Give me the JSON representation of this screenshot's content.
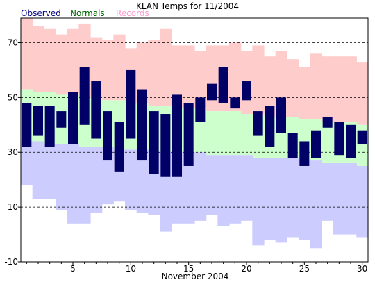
{
  "chart_data": {
    "type": "bar",
    "title": "KLAN Temps for 11/2004",
    "xlabel": "November 2004",
    "ylabel": "",
    "legend": [
      "Observed",
      "Normals",
      "Records"
    ],
    "legend_placement": "top-left",
    "colors": {
      "observed": "#000066",
      "observed_label": "#000080",
      "normals": "#ccffcc",
      "normals_label": "#006600",
      "records": "#ffcccc",
      "records_label": "#ff99cc",
      "extreme_low": "#ccccff"
    },
    "xlim": [
      0.5,
      30.5
    ],
    "ylim": [
      -10,
      79
    ],
    "x_ticks": [
      5,
      10,
      15,
      20,
      25,
      30
    ],
    "y_ticks": [
      -10,
      10,
      30,
      50,
      70
    ],
    "grid": "dashed horizontal lines at 10, 30, 50, 70",
    "days": [
      1,
      2,
      3,
      4,
      5,
      6,
      7,
      8,
      9,
      10,
      11,
      12,
      13,
      14,
      15,
      16,
      17,
      18,
      19,
      20,
      21,
      22,
      23,
      24,
      25,
      26,
      27,
      28,
      29,
      30
    ],
    "record_high": [
      79,
      76,
      75,
      73,
      75,
      77,
      72,
      71,
      73,
      68,
      70,
      71,
      75,
      69,
      69,
      67,
      69,
      69,
      70,
      67,
      69,
      65,
      67,
      64,
      61,
      66,
      65,
      65,
      65,
      63
    ],
    "normal_high": [
      53,
      52,
      52,
      51,
      51,
      50,
      50,
      49,
      49,
      48,
      48,
      47,
      47,
      46,
      46,
      46,
      45,
      45,
      45,
      44,
      44,
      43,
      43,
      43,
      42,
      42,
      41,
      41,
      41,
      40
    ],
    "normal_low": [
      34,
      34,
      33,
      33,
      33,
      32,
      32,
      32,
      31,
      31,
      31,
      30,
      30,
      30,
      30,
      30,
      29,
      29,
      29,
      29,
      28,
      28,
      28,
      28,
      27,
      27,
      26,
      26,
      26,
      25
    ],
    "record_low": [
      18,
      13,
      13,
      9,
      4,
      4,
      8,
      11,
      12,
      9,
      8,
      7,
      1,
      4,
      4,
      5,
      7,
      3,
      4,
      5,
      -4,
      -2,
      -3,
      -1,
      -2,
      -5,
      5,
      0,
      0,
      -1
    ],
    "observed_high": [
      48,
      47,
      47,
      45,
      52,
      61,
      56,
      45,
      41,
      60,
      53,
      45,
      44,
      51,
      48,
      50,
      55,
      61,
      50,
      56,
      45,
      47,
      50,
      37,
      34,
      38,
      43,
      41,
      40,
      38
    ],
    "observed_low": [
      32,
      36,
      32,
      39,
      33,
      40,
      35,
      27,
      23,
      35,
      27,
      22,
      21,
      21,
      25,
      41,
      49,
      48,
      46,
      49,
      36,
      32,
      37,
      28,
      25,
      28,
      39,
      29,
      28,
      33
    ]
  }
}
